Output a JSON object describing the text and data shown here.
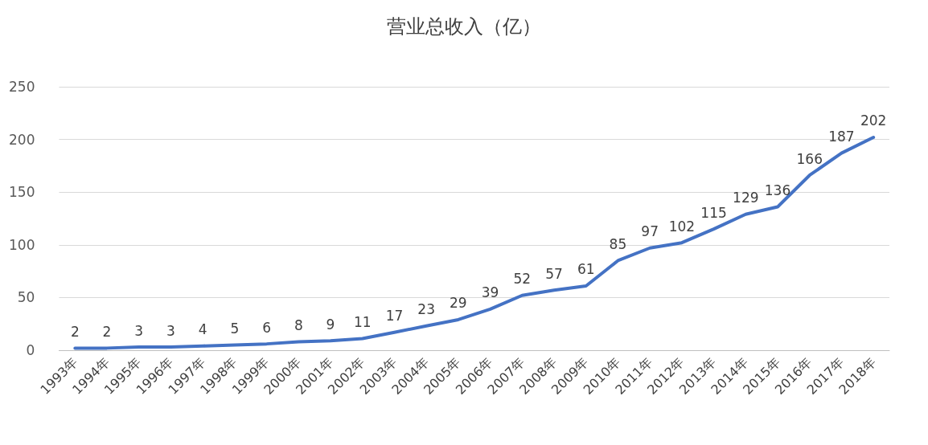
{
  "chart_data": {
    "type": "line",
    "title": "营业总收入（亿）",
    "categories": [
      "1993年",
      "1994年",
      "1995年",
      "1996年",
      "1997年",
      "1998年",
      "1999年",
      "2000年",
      "2001年",
      "2002年",
      "2003年",
      "2004年",
      "2005年",
      "2006年",
      "2007年",
      "2008年",
      "2009年",
      "2010年",
      "2011年",
      "2012年",
      "2013年",
      "2014年",
      "2015年",
      "2016年",
      "2017年",
      "2018年"
    ],
    "series": [
      {
        "color": "#4472c4",
        "values": [
          2,
          2,
          3,
          3,
          4,
          5,
          6,
          8,
          9,
          11,
          17,
          23,
          29,
          39,
          52,
          57,
          61,
          85,
          97,
          102,
          115,
          129,
          136,
          166,
          187,
          202
        ]
      }
    ],
    "ylim": [
      0,
      250
    ],
    "yticks": [
      0,
      50,
      100,
      150,
      200,
      250
    ],
    "grid": "y",
    "data_labels": true
  }
}
